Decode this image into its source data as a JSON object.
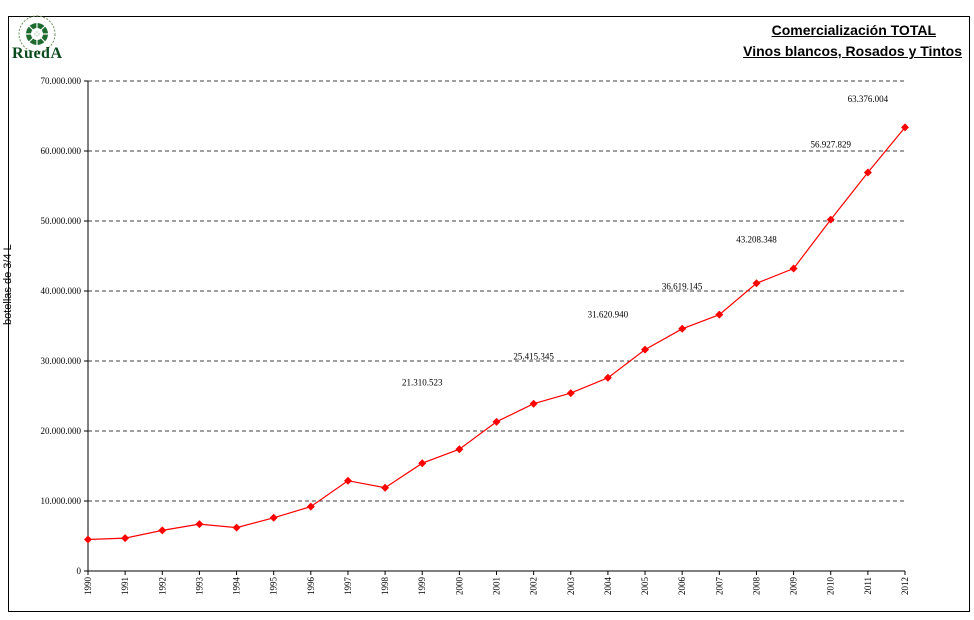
{
  "logo": {
    "text": "RuedA",
    "icon": "wine-wheel-emblem-icon"
  },
  "title_line1": "Comercialización TOTAL",
  "title_line2": "Vinos blancos, Rosados y Tintos",
  "chart_data": {
    "type": "line",
    "title": "Comercialización TOTAL Vinos blancos, Rosados y Tintos",
    "xlabel": "",
    "ylabel": "botellas de 3/4 L",
    "categories": [
      "1990",
      "1991",
      "1992",
      "1993",
      "1994",
      "1995",
      "1996",
      "1997",
      "1998",
      "1999",
      "2000",
      "2001",
      "2002",
      "2003",
      "2004",
      "2005",
      "2006",
      "2007",
      "2008",
      "2009",
      "2010",
      "2011",
      "2012"
    ],
    "ylim": [
      0,
      70000000
    ],
    "yticks": [
      0,
      10000000,
      20000000,
      30000000,
      40000000,
      50000000,
      60000000,
      70000000
    ],
    "ytick_labels": [
      "0",
      "10.000.000",
      "20.000.000",
      "30.000.000",
      "40.000.000",
      "50.000.000",
      "60.000.000",
      "70.000.000"
    ],
    "grid": "horizontal-dashed",
    "series": [
      {
        "color": "#ff0000",
        "marker": "diamond",
        "values": [
          4500000,
          4700000,
          5800000,
          6700000,
          6200000,
          7600000,
          9200000,
          12900000,
          11900000,
          15400000,
          17400000,
          21310523,
          23900000,
          25415345,
          27600000,
          31620940,
          34600000,
          36619145,
          41100000,
          43208348,
          50200000,
          56927829,
          63376004
        ]
      }
    ],
    "annotations": [
      {
        "x": "1999",
        "y": 26500000,
        "text": "21.310.523"
      },
      {
        "x": "2002",
        "y": 30200000,
        "text": "25.415.345"
      },
      {
        "x": "2004",
        "y": 36200000,
        "text": "31.620.940"
      },
      {
        "x": "2006",
        "y": 40200000,
        "text": "36.619.145"
      },
      {
        "x": "2008",
        "y": 46900000,
        "text": "43.208.348"
      },
      {
        "x": "2010",
        "y": 60500000,
        "text": "56.927.829"
      },
      {
        "x": "2011",
        "y": 67000000,
        "text": "63.376.004"
      }
    ]
  }
}
